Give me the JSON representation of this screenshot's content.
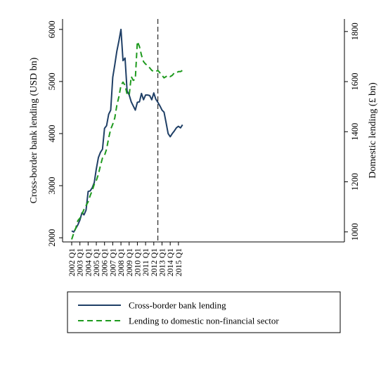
{
  "chart_data": {
    "type": "line",
    "ylabel": "Cross-border bank lending (USD bn)",
    "y2label": "Domestic lending (£ bn)",
    "y_ticks": [
      2000,
      3000,
      4000,
      5000,
      6000
    ],
    "y2_ticks": [
      1000,
      1200,
      1400,
      1600,
      1800
    ],
    "ylim": [
      1920,
      6200
    ],
    "y2lim": [
      960,
      1850
    ],
    "x_tick_labels": [
      "2002 Q1",
      "2003 Q1",
      "2004 Q1",
      "2005 Q1",
      "2006 Q1",
      "2007 Q1",
      "2008 Q1",
      "2009 Q1",
      "2010 Q1",
      "2011 Q1",
      "2012 Q1",
      "2013 Q1",
      "2014 Q1",
      "2015 Q1"
    ],
    "vline_at": "2012 Q3",
    "grid": false,
    "legend_position": "bottom",
    "series": [
      {
        "name": "Cross-border bank lending",
        "axis": "left",
        "color": "#1f3f66",
        "style": "solid",
        "points": [
          [
            "2002 Q1",
            2130
          ],
          [
            "2002 Q2",
            2110
          ],
          [
            "2002 Q3",
            2180
          ],
          [
            "2002 Q4",
            2250
          ],
          [
            "2003 Q1",
            2340
          ],
          [
            "2003 Q2",
            2480
          ],
          [
            "2003 Q3",
            2440
          ],
          [
            "2003 Q4",
            2530
          ],
          [
            "2004 Q1",
            2890
          ],
          [
            "2004 Q2",
            2900
          ],
          [
            "2004 Q3",
            2960
          ],
          [
            "2004 Q4",
            3060
          ],
          [
            "2005 Q1",
            3320
          ],
          [
            "2005 Q2",
            3540
          ],
          [
            "2005 Q3",
            3640
          ],
          [
            "2005 Q4",
            3700
          ],
          [
            "2006 Q1",
            4100
          ],
          [
            "2006 Q2",
            4150
          ],
          [
            "2006 Q3",
            4370
          ],
          [
            "2006 Q4",
            4450
          ],
          [
            "2007 Q1",
            5080
          ],
          [
            "2007 Q2",
            5320
          ],
          [
            "2007 Q3",
            5580
          ],
          [
            "2007 Q4",
            5780
          ],
          [
            "2008 Q1",
            6000
          ],
          [
            "2008 Q2",
            5400
          ],
          [
            "2008 Q3",
            5450
          ],
          [
            "2008 Q4",
            4820
          ],
          [
            "2009 Q1",
            4740
          ],
          [
            "2009 Q2",
            4610
          ],
          [
            "2009 Q3",
            4530
          ],
          [
            "2009 Q4",
            4450
          ],
          [
            "2010 Q1",
            4600
          ],
          [
            "2010 Q2",
            4610
          ],
          [
            "2010 Q3",
            4770
          ],
          [
            "2010 Q4",
            4650
          ],
          [
            "2011 Q1",
            4740
          ],
          [
            "2011 Q2",
            4740
          ],
          [
            "2011 Q3",
            4730
          ],
          [
            "2011 Q4",
            4650
          ],
          [
            "2012 Q1",
            4780
          ],
          [
            "2012 Q2",
            4660
          ],
          [
            "2012 Q3",
            4600
          ],
          [
            "2012 Q4",
            4530
          ],
          [
            "2013 Q1",
            4450
          ],
          [
            "2013 Q2",
            4410
          ],
          [
            "2013 Q3",
            4210
          ],
          [
            "2013 Q4",
            4000
          ],
          [
            "2014 Q1",
            3940
          ],
          [
            "2014 Q2",
            4000
          ],
          [
            "2014 Q3",
            4050
          ],
          [
            "2014 Q4",
            4110
          ],
          [
            "2015 Q1",
            4140
          ],
          [
            "2015 Q2",
            4110
          ],
          [
            "2015 Q3",
            4170
          ]
        ]
      },
      {
        "name": "Lending to domestic non-financial sector",
        "axis": "right",
        "color": "#1e9a1e",
        "style": "dashed",
        "points": [
          [
            "2002 Q1",
            970
          ],
          [
            "2002 Q2",
            995
          ],
          [
            "2002 Q3",
            1015
          ],
          [
            "2002 Q4",
            1045
          ],
          [
            "2003 Q1",
            1055
          ],
          [
            "2003 Q2",
            1070
          ],
          [
            "2003 Q3",
            1090
          ],
          [
            "2003 Q4",
            1105
          ],
          [
            "2004 Q1",
            1120
          ],
          [
            "2004 Q2",
            1145
          ],
          [
            "2004 Q3",
            1165
          ],
          [
            "2004 Q4",
            1190
          ],
          [
            "2005 Q1",
            1205
          ],
          [
            "2005 Q2",
            1230
          ],
          [
            "2005 Q3",
            1265
          ],
          [
            "2005 Q4",
            1295
          ],
          [
            "2006 Q1",
            1305
          ],
          [
            "2006 Q2",
            1330
          ],
          [
            "2006 Q3",
            1375
          ],
          [
            "2006 Q4",
            1410
          ],
          [
            "2007 Q1",
            1430
          ],
          [
            "2007 Q2",
            1455
          ],
          [
            "2007 Q3",
            1505
          ],
          [
            "2007 Q4",
            1540
          ],
          [
            "2008 Q1",
            1585
          ],
          [
            "2008 Q2",
            1598
          ],
          [
            "2008 Q3",
            1585
          ],
          [
            "2008 Q4",
            1550
          ],
          [
            "2009 Q1",
            1545
          ],
          [
            "2009 Q2",
            1620
          ],
          [
            "2009 Q3",
            1605
          ],
          [
            "2009 Q4",
            1610
          ],
          [
            "2010 Q1",
            1760
          ],
          [
            "2010 Q2",
            1740
          ],
          [
            "2010 Q3",
            1705
          ],
          [
            "2010 Q4",
            1680
          ],
          [
            "2011 Q1",
            1670
          ],
          [
            "2011 Q2",
            1665
          ],
          [
            "2011 Q3",
            1655
          ],
          [
            "2011 Q4",
            1645
          ],
          [
            "2012 Q1",
            1640
          ],
          [
            "2012 Q2",
            1640
          ],
          [
            "2012 Q3",
            1645
          ],
          [
            "2012 Q4",
            1635
          ],
          [
            "2013 Q1",
            1625
          ],
          [
            "2013 Q2",
            1615
          ],
          [
            "2013 Q3",
            1620
          ],
          [
            "2013 Q4",
            1625
          ],
          [
            "2014 Q1",
            1620
          ],
          [
            "2014 Q2",
            1625
          ],
          [
            "2014 Q3",
            1635
          ],
          [
            "2014 Q4",
            1635
          ],
          [
            "2015 Q1",
            1640
          ],
          [
            "2015 Q2",
            1640
          ],
          [
            "2015 Q3",
            1645
          ]
        ]
      }
    ]
  }
}
